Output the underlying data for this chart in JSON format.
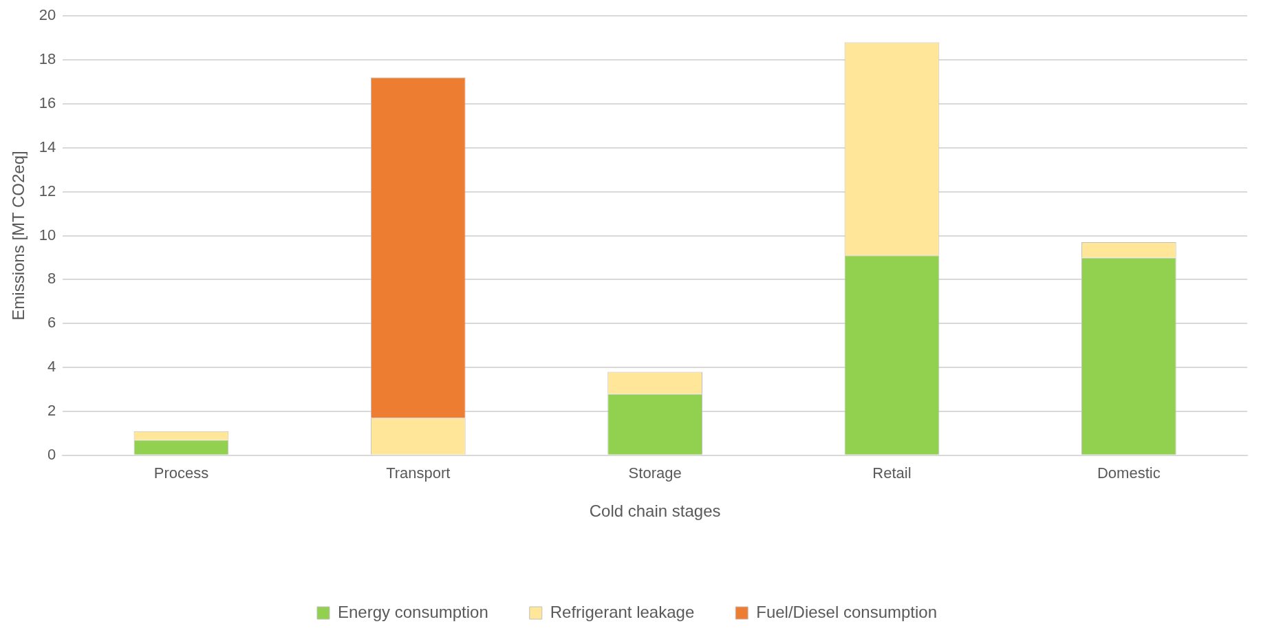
{
  "chart_data": {
    "type": "bar",
    "stacked": true,
    "xlabel": "Cold chain stages",
    "ylabel": "Emissions [MT CO2eq]",
    "categories": [
      "Process",
      "Transport",
      "Storage",
      "Retail",
      "Domestic"
    ],
    "series": [
      {
        "name": "Energy consumption",
        "color": "#92d050",
        "values": [
          0.7,
          null,
          2.8,
          9.1,
          9.0
        ]
      },
      {
        "name": "Refrigerant leakage",
        "color": "#ffe699",
        "values": [
          0.4,
          1.7,
          1.0,
          9.7,
          0.7
        ]
      },
      {
        "name": "Fuel/Diesel consumption",
        "color": "#ed7d31",
        "values": [
          null,
          15.5,
          null,
          null,
          null
        ]
      }
    ],
    "ylim": [
      0,
      20
    ],
    "yticks": [
      0,
      2,
      4,
      6,
      8,
      10,
      12,
      14,
      16,
      18,
      20
    ],
    "grid": "y",
    "legend": "bottom"
  }
}
